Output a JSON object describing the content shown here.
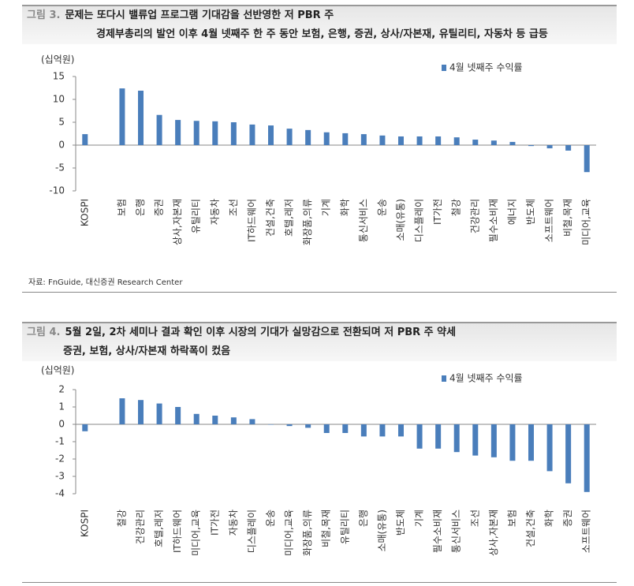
{
  "chart_data": [
    {
      "type": "bar",
      "figure_label": "그림 3.",
      "title": "문제는 또다시 밸류업 프로그램 기대감을 선반영한 저 PBR 주",
      "subtitle": "경제부총리의 발언 이후 4월 넷째주 한 주 동안 보험, 은행, 증권, 상사/자본재, 유틸리티, 자동차 등 급등",
      "y_label": "(십억원)",
      "categories": [
        "KOSPI",
        null,
        "보험",
        "은행",
        "증권",
        "상사,자본재",
        "유틸리티",
        "자동차",
        "조선",
        "IT하드웨어",
        "건설,건축",
        "호텔,레저",
        "화장품,의류",
        "기계",
        "화학",
        "통신서비스",
        "운송",
        "소매(유통)",
        "디스플레이",
        "IT가전",
        "철강",
        "건강관리",
        "필수소비재",
        "에너지",
        "반도체",
        "소프트웨어",
        "비철,목재",
        "미디어,교육"
      ],
      "series": [
        {
          "name": "4월 넷째주 수익률",
          "color": "#4a7ebb",
          "values": [
            2.4,
            null,
            12.4,
            11.9,
            6.6,
            5.5,
            5.3,
            5.2,
            5.0,
            4.5,
            4.3,
            3.6,
            3.3,
            2.8,
            2.6,
            2.4,
            2.1,
            1.9,
            1.9,
            1.9,
            1.7,
            1.2,
            1.0,
            0.7,
            -0.2,
            -0.7,
            -1.2,
            -5.9
          ]
        }
      ],
      "ylim": [
        -10,
        15
      ],
      "yticks": [
        -10,
        -5,
        0,
        5,
        10,
        15
      ],
      "legend": "top-right"
    },
    {
      "type": "bar",
      "figure_label": "그림 4.",
      "title": "5월 2일, 2차 세미나 결과 확인 이후 시장의 기대가 실망감으로 전환되며 저 PBR 주 약세",
      "subtitle": "증권, 보험, 상사/자본재 하락폭이 컸음",
      "y_label": "(십억원)",
      "categories": [
        "KOSPI",
        null,
        "철강",
        "건강관리",
        "호텔,레저",
        "IT하드웨어",
        "미디어,교육",
        "IT가전",
        "자동차",
        "디스플레이",
        "운송",
        "미디어,교육",
        "화장품,의류",
        "비철,목재",
        "유틸리티",
        "은행",
        "소매(유통)",
        "반도체",
        "기계",
        "필수소비재",
        "통신서비스",
        "조선",
        "상사,자본재",
        "보험",
        "건설,건축",
        "화학",
        "증권",
        "소프트웨어"
      ],
      "series": [
        {
          "name": "4월 넷째주 수익률",
          "color": "#4a7ebb",
          "values": [
            -0.4,
            null,
            1.5,
            1.4,
            1.2,
            1.0,
            0.6,
            0.5,
            0.4,
            0.3,
            0.0,
            -0.1,
            -0.2,
            -0.5,
            -0.5,
            -0.7,
            -0.7,
            -0.7,
            -1.4,
            -1.4,
            -1.6,
            -1.8,
            -1.9,
            -2.1,
            -2.1,
            -2.7,
            -3.4,
            -3.9
          ]
        }
      ],
      "ylim": [
        -4,
        2
      ],
      "yticks": [
        -4,
        -3,
        -2,
        -1,
        0,
        1,
        2
      ],
      "legend": "top-right"
    }
  ],
  "source": "자료: FnGuide, 대신증권 Research Center"
}
